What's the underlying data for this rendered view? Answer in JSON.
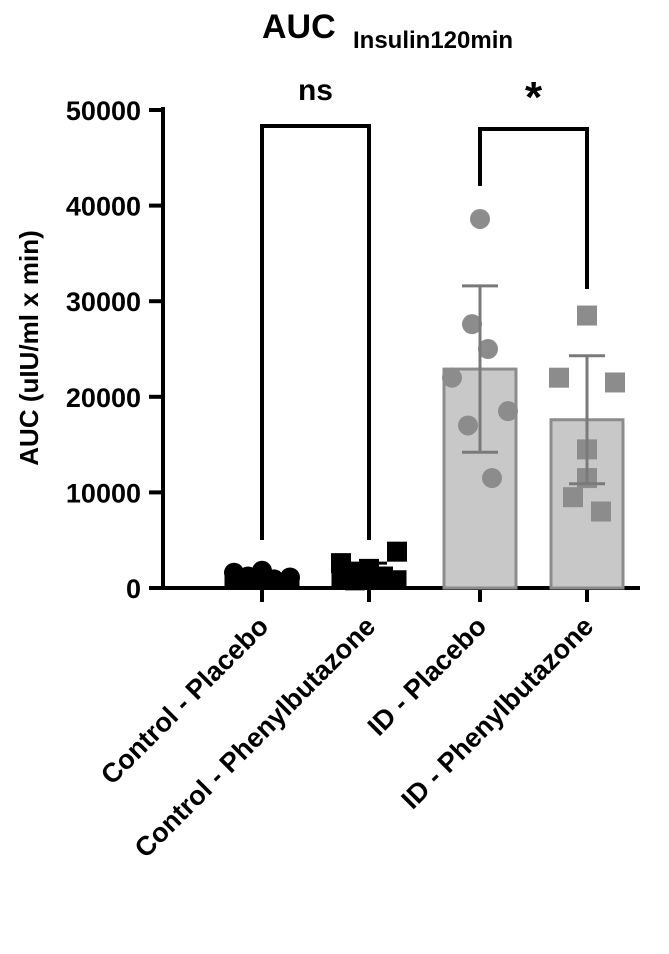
{
  "chart_data": {
    "type": "bar",
    "title_main": "AUC",
    "title_sub": "Insulin120min",
    "ylabel": "AUC (uIU/ml x min)",
    "xlabel": "",
    "ylim": [
      0,
      50000
    ],
    "yticks": [
      0,
      10000,
      20000,
      30000,
      40000,
      50000
    ],
    "ytick_labels": [
      "0",
      "10000",
      "20000",
      "30000",
      "40000",
      "50000"
    ],
    "grid": false,
    "categories": [
      "Control - Placebo",
      "Control - Phenylbutazone",
      "ID - Placebo",
      "ID - Phenylbutazone"
    ],
    "series": [
      {
        "values": [
          1300,
          1700,
          22900,
          17600
        ],
        "error": [
          300,
          900,
          8700,
          6700
        ],
        "marker": [
          "circle",
          "square",
          "circle",
          "square"
        ],
        "bar_fill": [
          "#000000",
          "#000000",
          "#c8c8c8",
          "#c8c8c8"
        ],
        "bar_stroke": [
          "#000000",
          "#000000",
          "#8c8c8c",
          "#8c8c8c"
        ],
        "point_color": [
          "#000000",
          "#000000",
          "#8c8c8c",
          "#8c8c8c"
        ],
        "points": [
          [
            1000,
            1300,
            1800,
            1200,
            900,
            1600,
            1100
          ],
          [
            800,
            1200,
            2000,
            2600,
            3800,
            1500,
            1000
          ],
          [
            38600,
            27600,
            25000,
            22000,
            18500,
            17000,
            11500
          ],
          [
            28500,
            22000,
            21500,
            14500,
            11500,
            9500,
            8000
          ]
        ]
      }
    ],
    "significance": [
      {
        "from": 0,
        "to": 1,
        "label": "ns"
      },
      {
        "from": 2,
        "to": 3,
        "label": "*"
      }
    ]
  }
}
